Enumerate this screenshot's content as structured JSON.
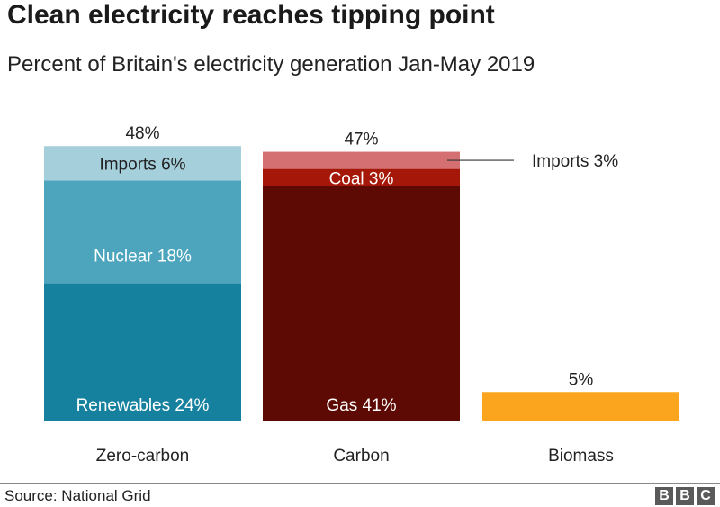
{
  "header": {
    "title": "Clean electricity reaches tipping point",
    "subtitle": "Percent of Britain's electricity generation Jan-May 2019"
  },
  "footer": {
    "source": "Source: National Grid",
    "logo_letters": [
      "B",
      "B",
      "C"
    ]
  },
  "chart_data": {
    "type": "bar",
    "stacked": true,
    "title": "Clean electricity reaches tipping point",
    "subtitle": "Percent of Britain's electricity generation Jan-May 2019",
    "unit": "%",
    "ylim": [
      0,
      48
    ],
    "grid": false,
    "legend": "none",
    "categories": [
      "Zero-carbon",
      "Carbon",
      "Biomass"
    ],
    "totals": [
      {
        "category": "Zero-carbon",
        "value": 48,
        "label": "48%"
      },
      {
        "category": "Carbon",
        "value": 47,
        "label": "47%"
      },
      {
        "category": "Biomass",
        "value": 5,
        "label": "5%"
      }
    ],
    "stacks": [
      {
        "category": "Zero-carbon",
        "segments": [
          {
            "name": "Renewables",
            "value": 24,
            "label": "Renewables 24%",
            "color": "#16819e",
            "label_color": "#ffffff"
          },
          {
            "name": "Nuclear",
            "value": 18,
            "label": "Nuclear 18%",
            "color": "#4ca5bd",
            "label_color": "#ffffff"
          },
          {
            "name": "Imports",
            "value": 6,
            "label": "Imports 6%",
            "color": "#a6cfdc",
            "label_color": "#222222"
          }
        ]
      },
      {
        "category": "Carbon",
        "segments": [
          {
            "name": "Gas",
            "value": 41,
            "label": "Gas 41%",
            "color": "#5c0a03",
            "label_color": "#ffffff"
          },
          {
            "name": "Coal",
            "value": 3,
            "label": "Coal 3%",
            "color": "#a51708",
            "label_color": "#ffffff"
          },
          {
            "name": "Imports",
            "value": 3,
            "label": "Imports 3%",
            "color": "#d47071",
            "label_color": "#222222",
            "callout": true
          }
        ]
      },
      {
        "category": "Biomass",
        "segments": [
          {
            "name": "Biomass",
            "value": 5,
            "label": "",
            "color": "#fba51f",
            "label_color": "#222222"
          }
        ]
      }
    ]
  }
}
